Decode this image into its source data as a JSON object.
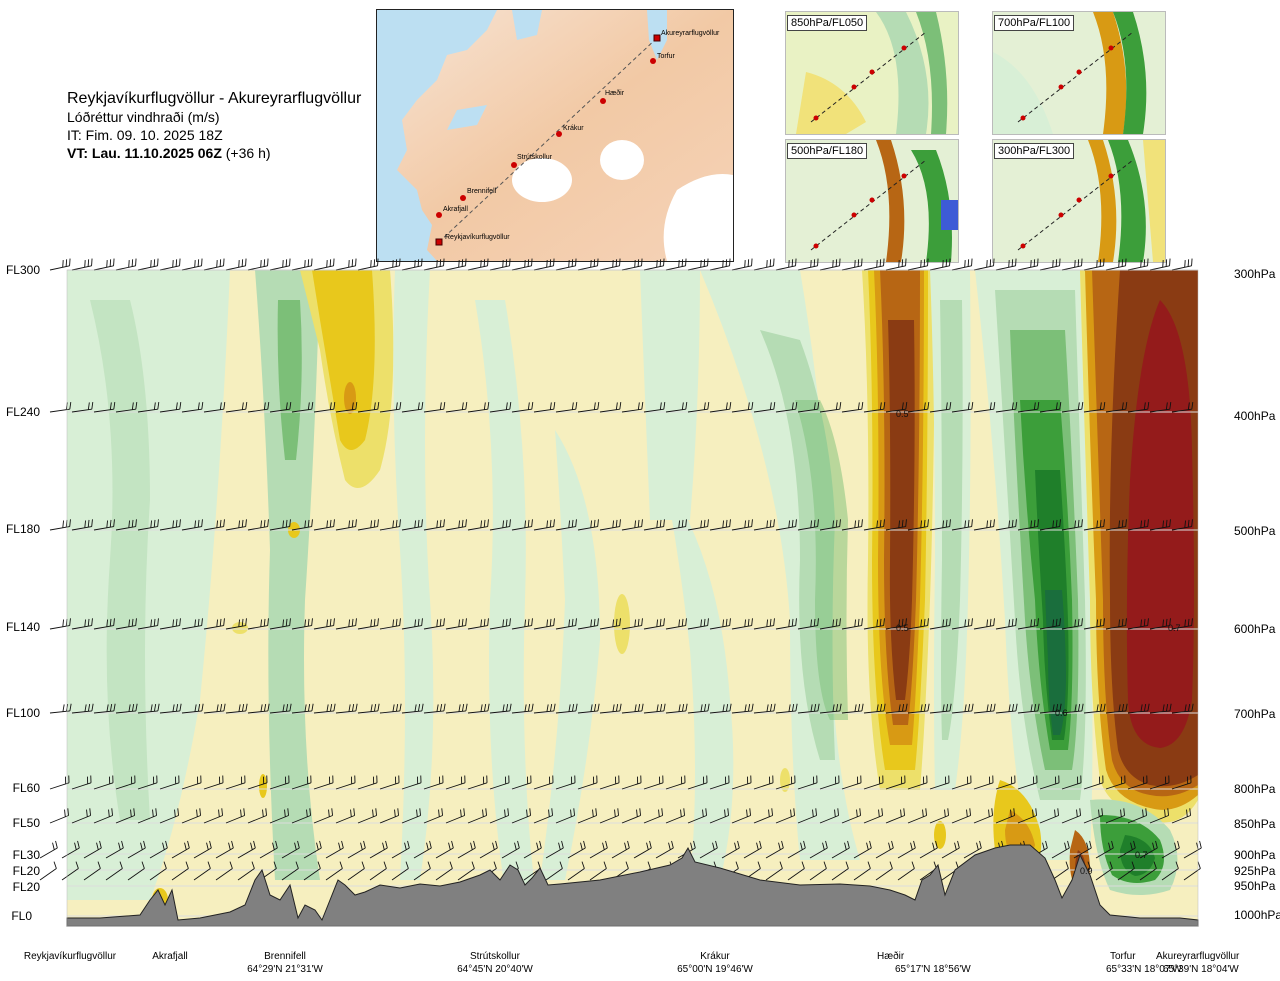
{
  "header": {
    "route_title": "Reykjavíkurflugvöllur - Akureyrarflugvöllur",
    "variable": "Lóðréttur vindhraði (m/s)",
    "issue_time": "IT: Fim. 09. 10. 2025 18Z",
    "valid_label": "VT: Lau. 11.10.2025 06Z",
    "valid_offset": "(+36 h)"
  },
  "route_map": {
    "waypoints": [
      "Akureyrarflugvöllur",
      "Torfur",
      "Hæðir",
      "Krákur",
      "Strútskollur",
      "Brennifell",
      "Akrafjall",
      "Reykjavíkurflugvöllur"
    ],
    "colors": {
      "land": "#f5d9c2",
      "sea": "#bcdff2",
      "ice": "#ffffff",
      "route": "#cc0000"
    }
  },
  "level_maps": [
    {
      "label": "850hPa/FL050"
    },
    {
      "label": "700hPa/FL100"
    },
    {
      "label": "500hPa/FL180"
    },
    {
      "label": "300hPa/FL300"
    }
  ],
  "levels": [
    {
      "fl": "FL300",
      "hpa": "300hPa"
    },
    {
      "fl": "FL240",
      "hpa": "400hPa"
    },
    {
      "fl": "FL180",
      "hpa": "500hPa"
    },
    {
      "fl": "FL140",
      "hpa": "600hPa"
    },
    {
      "fl": "FL100",
      "hpa": "700hPa"
    },
    {
      "fl": "FL60",
      "hpa": "800hPa"
    },
    {
      "fl": "FL50",
      "hpa": "850hPa"
    },
    {
      "fl": "FL30",
      "hpa": "900hPa"
    },
    {
      "fl": "FL20",
      "hpa": "925hPa"
    },
    {
      "fl": "FL20",
      "hpa": "950hPa"
    },
    {
      "fl": "FL0",
      "hpa": "1000hPa"
    }
  ],
  "locations": [
    {
      "name": "Reykjavíkurflugvöllur",
      "coord": ""
    },
    {
      "name": "Akrafjall",
      "coord": ""
    },
    {
      "name": "Brennifell",
      "coord": "64°29'N 21°31'W"
    },
    {
      "name": "Strútskollur",
      "coord": "64°45'N 20°40'W"
    },
    {
      "name": "Krákur",
      "coord": "65°00'N 19°46'W"
    },
    {
      "name": "Hæðir",
      "coord": "65°17'N 18°56'W"
    },
    {
      "name": "Torfur",
      "coord": "65°33'N 18°07'W"
    },
    {
      "name": "Akureyrarflugvöllur",
      "coord": "65°39'N 18°04'W"
    }
  ],
  "contour_labels": [
    "0.5",
    "0.5",
    "0.7",
    "0.6",
    "0.7",
    "0.9"
  ],
  "palette": {
    "up_1": "#f7eeab",
    "up_2": "#ede06a",
    "up_3": "#e8c81c",
    "up_4": "#d89a14",
    "up_5": "#b76614",
    "up_6": "#8a3b13",
    "up_7": "#941b1b",
    "down_1": "#d8efd6",
    "down_2": "#b5dcb4",
    "down_3": "#7cbf78",
    "down_4": "#3c9e3a",
    "down_5": "#1f7f2a",
    "down_6": "#1a6e3d",
    "terrain": "#808080",
    "background": "#f6f2c9"
  }
}
